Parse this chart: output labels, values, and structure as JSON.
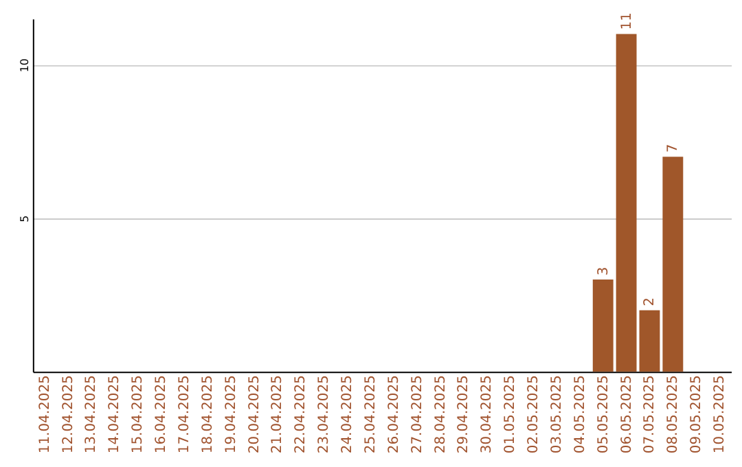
{
  "chart_data": {
    "type": "bar",
    "categories": [
      "11.04.2025",
      "12.04.2025",
      "13.04.2025",
      "14.04.2025",
      "15.04.2025",
      "16.04.2025",
      "17.04.2025",
      "18.04.2025",
      "19.04.2025",
      "20.04.2025",
      "21.04.2025",
      "22.04.2025",
      "23.04.2025",
      "24.04.2025",
      "25.04.2025",
      "26.04.2025",
      "27.04.2025",
      "28.04.2025",
      "29.04.2025",
      "30.04.2025",
      "01.05.2025",
      "02.05.2025",
      "03.05.2025",
      "04.05.2025",
      "05.05.2025",
      "06.05.2025",
      "07.05.2025",
      "08.05.2025",
      "09.05.2025",
      "10.05.2025"
    ],
    "values": [
      null,
      null,
      null,
      null,
      null,
      null,
      null,
      null,
      null,
      null,
      null,
      null,
      null,
      null,
      null,
      null,
      null,
      null,
      null,
      null,
      null,
      null,
      null,
      null,
      3,
      11,
      2,
      7,
      null,
      null
    ],
    "color": "#a0572a",
    "ylim": [
      0,
      11.5
    ],
    "yticks": [
      5,
      10
    ],
    "grid": "y",
    "data_labels": true
  }
}
